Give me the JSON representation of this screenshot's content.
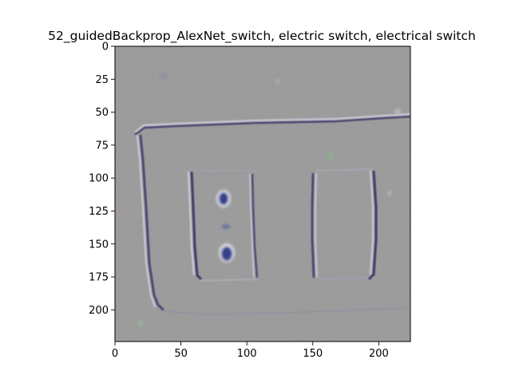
{
  "chart_data": {
    "type": "heatmap",
    "title": "52_guidedBackprop_AlexNet_switch, electric switch, electrical switch",
    "image_size": [
      224,
      224
    ],
    "xlim": [
      0,
      224
    ],
    "ylim": [
      224,
      0
    ],
    "xticks": [
      0,
      50,
      100,
      150,
      200
    ],
    "yticks": [
      0,
      25,
      50,
      75,
      100,
      125,
      150,
      175,
      200
    ],
    "xlabel": "",
    "ylabel": "",
    "background_color": "#999999",
    "depicted_object": "electric switch plate with a two-button switch and a rocker switch",
    "colors": {
      "edge_dark": "#4a3f6e",
      "edge_light": "#cfc6d6",
      "button_dark": "#343f8c",
      "button_light": "#d8dbe6"
    }
  }
}
